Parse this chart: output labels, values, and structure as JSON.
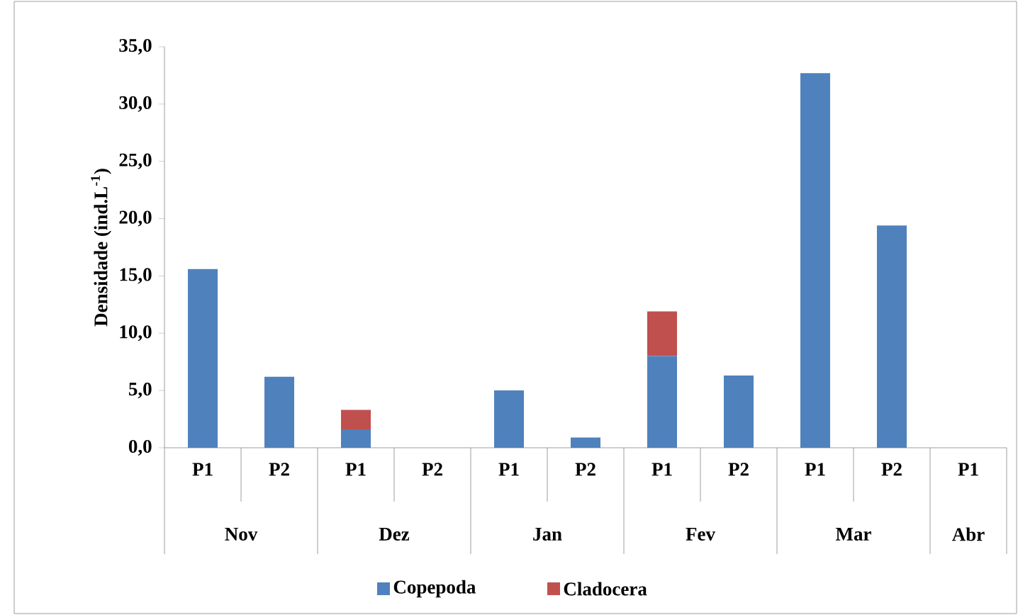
{
  "chart_data": {
    "type": "bar",
    "stacked": true,
    "ylabel": "Densidade (ind.L$^{-1}$)",
    "categories": [
      "P1",
      "P2",
      "P1",
      "P2",
      "P1",
      "P2",
      "P1",
      "P2",
      "P1",
      "P2",
      "P1"
    ],
    "series": [
      {
        "name": "Copepoda",
        "color": "#4f81bd",
        "values": [
          15.6,
          6.2,
          1.6,
          0,
          5.0,
          0.9,
          8.0,
          6.3,
          32.7,
          19.4,
          0
        ]
      },
      {
        "name": "Cladocera",
        "color": "#c0504d",
        "values": [
          0,
          0,
          1.7,
          0,
          0,
          0,
          3.9,
          0,
          0,
          0,
          0
        ]
      }
    ],
    "annotations": [
      "Nov",
      "Dez",
      "Jan",
      "Fev",
      "Mar",
      "Abr"
    ],
    "ylim": [
      0,
      35
    ],
    "yticks": [
      {
        "value": 0,
        "label": "0,0"
      },
      {
        "value": 5,
        "label": "5,0"
      },
      {
        "value": 10,
        "label": "10,0"
      },
      {
        "value": 15,
        "label": "15,0"
      },
      {
        "value": 20,
        "label": "20,0"
      },
      {
        "value": 25,
        "label": "25,0"
      },
      {
        "value": 30,
        "label": "30,0"
      },
      {
        "value": 35,
        "label": "35,0"
      }
    ],
    "legend": "bottom"
  }
}
